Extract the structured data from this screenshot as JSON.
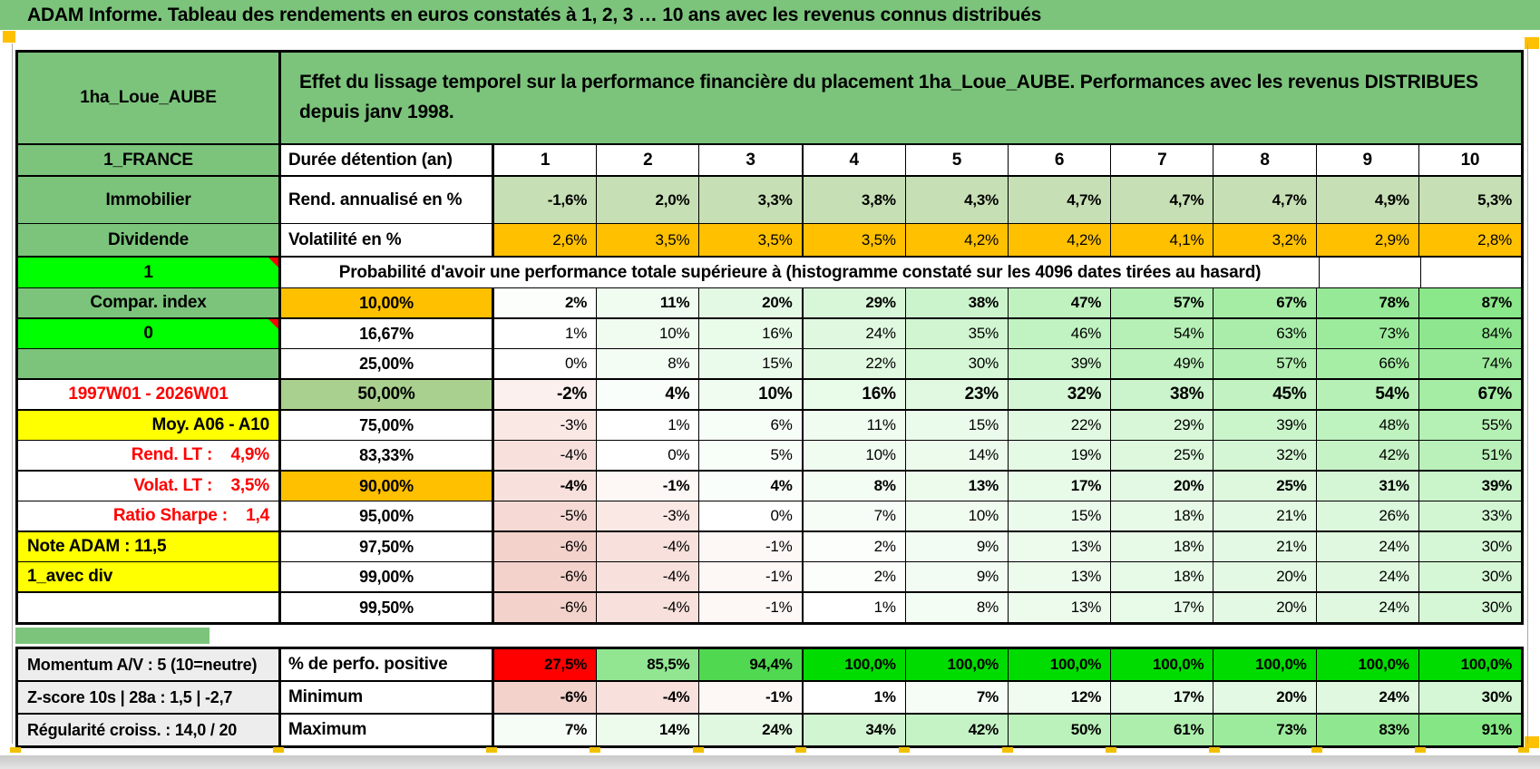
{
  "title": "ADAM Informe. Tableau des rendements en euros constatés à 1, 2, 3 … 10 ans avec les revenus connus distribués",
  "header": {
    "left_label": "1ha_Loue_AUBE",
    "description": "Effet du lissage temporel sur la performance financière du placement 1ha_Loue_AUBE. Performances avec les revenus DISTRIBUES\ndepuis janv 1998."
  },
  "palette": {
    "band_green": "#7cc47c",
    "bright_green": "#00ff00",
    "orange": "#ffc000",
    "yellow": "#ffff00",
    "sage": "#a9d08e",
    "rend_row_bg": "#c6dfb4",
    "red": "#ff0000",
    "gray_label_bg": "#ededed",
    "perfo_colors": [
      "#ff0000",
      "#92e692",
      "#50d850",
      "#00dc00"
    ]
  },
  "table": {
    "columns": [
      "1",
      "2",
      "3",
      "4",
      "5",
      "6",
      "7",
      "8",
      "9",
      "10"
    ],
    "rows_main": [
      {
        "h": "h-duree",
        "thick": 1,
        "a": "1_FRANCE",
        "aCls": "ag",
        "b": "Durée détention (an)",
        "bCls": "blabel",
        "cells": [
          "1",
          "2",
          "3",
          "4",
          "5",
          "6",
          "7",
          "8",
          "9",
          "10"
        ],
        "cCls": "chead"
      },
      {
        "h": "h-rend",
        "a": "Immobilier",
        "aCls": "ag",
        "b": "Rend. annualisé en %",
        "bCls": "blabel",
        "cells": [
          "-1,6%",
          "2,0%",
          "3,3%",
          "3,8%",
          "4,3%",
          "4,7%",
          "4,7%",
          "4,7%",
          "4,9%",
          "5,3%"
        ],
        "bg": "#c6dfb4",
        "bold": 1
      },
      {
        "h": "h-volat",
        "thick": 1,
        "a": "Dividende",
        "aCls": "ag",
        "b": "Volatilité en %",
        "bCls": "blabel",
        "cells": [
          "2,6%",
          "3,5%",
          "3,5%",
          "3,5%",
          "4,2%",
          "4,2%",
          "4,1%",
          "3,2%",
          "2,9%",
          "2,8%"
        ],
        "bg": "#ffc000"
      },
      {
        "h": "h-proba",
        "a": "1",
        "aCls": "al corner",
        "span": 8,
        "merged": "Probabilité d'avoir une performance totale supérieure à (histogramme constaté sur les 4096 dates tirées au hasard)"
      },
      {
        "thick": 1,
        "a": "Compar. index",
        "aCls": "ag",
        "b": "10,00%",
        "bCls": "borange",
        "cells": [
          2,
          11,
          20,
          29,
          38,
          47,
          57,
          67,
          78,
          87
        ],
        "scale": 1,
        "bold": 1
      },
      {
        "a": "0",
        "aCls": "al corner",
        "b": "16,67%",
        "cells": [
          1,
          10,
          16,
          24,
          35,
          46,
          54,
          63,
          73,
          84
        ],
        "scale": 1
      },
      {
        "thick": 1,
        "a": "",
        "aCls": "ag",
        "b": "25,00%",
        "cells": [
          0,
          8,
          15,
          22,
          30,
          39,
          49,
          57,
          66,
          74
        ],
        "scale": 1
      },
      {
        "thick": 1,
        "a": "1997W01 - 2026W01",
        "aCls": "aw red",
        "b": "50,00%",
        "bCls": "bsage",
        "big": 1,
        "cells": [
          -2,
          4,
          10,
          16,
          23,
          32,
          38,
          45,
          54,
          67
        ],
        "scale": 1,
        "bold": 1
      },
      {
        "a": "Moy. A06 - A10",
        "aCls": "ay right",
        "b": "75,00%",
        "cells": [
          -3,
          1,
          6,
          11,
          15,
          22,
          29,
          39,
          48,
          55
        ],
        "scale": 1
      },
      {
        "thick": 1,
        "a": "Rend. LT :    4,9%",
        "aCls": "aw red right",
        "b": "83,33%",
        "cells": [
          -4,
          0,
          5,
          10,
          14,
          19,
          25,
          32,
          42,
          51
        ],
        "scale": 1
      },
      {
        "a": "Volat. LT :    3,5%",
        "aCls": "aw red right",
        "b": "90,00%",
        "bCls": "borange",
        "cells": [
          -4,
          -1,
          4,
          8,
          13,
          17,
          20,
          25,
          31,
          39
        ],
        "scale": 1,
        "bold": 1
      },
      {
        "thick": 1,
        "a": "Ratio Sharpe :    1,4",
        "aCls": "aw red right",
        "b": "95,00%",
        "cells": [
          -5,
          -3,
          0,
          7,
          10,
          15,
          18,
          21,
          26,
          33
        ],
        "scale": 1
      },
      {
        "a": "Note ADAM : 11,5",
        "aCls": "ay left",
        "b": "97,50%",
        "cells": [
          -6,
          -4,
          -1,
          2,
          9,
          13,
          18,
          21,
          24,
          30
        ],
        "scale": 1
      },
      {
        "thick": 1,
        "a": "1_avec div",
        "aCls": "ay left",
        "b": "99,00%",
        "cells": [
          -6,
          -4,
          -1,
          2,
          9,
          13,
          18,
          20,
          24,
          30
        ],
        "scale": 1
      },
      {
        "a": "",
        "aCls": "aw",
        "b": "99,50%",
        "cells": [
          -6,
          -4,
          -1,
          1,
          8,
          13,
          17,
          20,
          24,
          30
        ],
        "scale": 1
      }
    ],
    "rows_bottom": [
      {
        "h": "h-bot",
        "thick": 1,
        "a": "Momentum A/V : 5 (10=neutre)",
        "aCls": "agray left",
        "b": "% de perfo. positive",
        "bCls": "blabel",
        "cells": [
          "27,5%",
          "85,5%",
          "94,4%",
          "100,0%",
          "100,0%",
          "100,0%",
          "100,0%",
          "100,0%",
          "100,0%",
          "100,0%"
        ],
        "colors": [
          "#ff0000",
          "#92e692",
          "#50d850",
          "#00dc00",
          "#00dc00",
          "#00dc00",
          "#00dc00",
          "#00dc00",
          "#00dc00",
          "#00dc00"
        ],
        "bold": 1
      },
      {
        "h": "h-bot",
        "thick": 1,
        "a": "Z-score 10s | 28a : 1,5 | -2,7",
        "aCls": "agray left",
        "b": "Minimum",
        "bCls": "blabel",
        "cells": [
          -6,
          -4,
          -1,
          1,
          7,
          12,
          17,
          20,
          24,
          30
        ],
        "scale": 1,
        "bold": 1
      },
      {
        "h": "h-bot",
        "a": "Régularité croiss. : 14,0 / 20",
        "aCls": "agray left",
        "b": "Maximum",
        "bCls": "blabel",
        "cells": [
          7,
          14,
          24,
          34,
          42,
          50,
          61,
          73,
          83,
          91
        ],
        "scale": 1,
        "bold": 1
      }
    ]
  }
}
